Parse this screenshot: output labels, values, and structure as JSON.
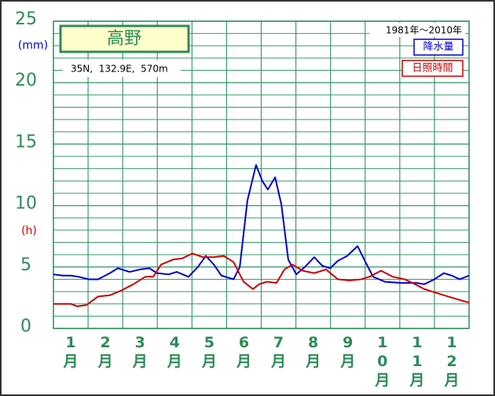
{
  "chart_data": {
    "type": "line",
    "title": "高野",
    "subtitle": "35N,  132.9E,  570m",
    "period": "1981年〜2010年",
    "y_label_precip": "(mm)",
    "y_label_sun": "(h)",
    "categories": [
      "1月",
      "2月",
      "3月",
      "4月",
      "5月",
      "6月",
      "7月",
      "8月",
      "9月",
      "10月",
      "11月",
      "12月"
    ],
    "xlim": [
      0,
      12
    ],
    "ylim": [
      0,
      25
    ],
    "yticks": [
      0,
      5,
      10,
      15,
      20,
      25
    ],
    "grid": true,
    "series": [
      {
        "name": "降水量",
        "color": "#0000cc",
        "x": [
          0,
          0.27,
          0.5,
          0.73,
          1.02,
          1.29,
          1.63,
          1.86,
          2.2,
          2.5,
          2.77,
          2.99,
          3.33,
          3.56,
          3.9,
          4.17,
          4.4,
          4.63,
          4.85,
          5.2,
          5.38,
          5.6,
          5.85,
          6.03,
          6.19,
          6.4,
          6.58,
          6.78,
          7.01,
          7.26,
          7.53,
          7.76,
          7.99,
          8.21,
          8.48,
          8.78,
          9.01,
          9.23,
          9.57,
          10.03,
          10.48,
          10.71,
          11.0,
          11.27,
          11.5,
          11.73,
          12
        ],
        "values": [
          4.4,
          4.3,
          4.3,
          4.2,
          4.0,
          4.0,
          4.5,
          4.9,
          4.6,
          4.8,
          4.9,
          4.5,
          4.4,
          4.6,
          4.2,
          5.0,
          5.9,
          5.2,
          4.3,
          4.0,
          5.0,
          10.4,
          13.3,
          12.0,
          11.3,
          12.3,
          10.1,
          5.6,
          4.4,
          5.0,
          5.8,
          5.1,
          4.9,
          5.5,
          5.9,
          6.7,
          5.4,
          4.2,
          3.8,
          3.7,
          3.7,
          3.6,
          4.0,
          4.5,
          4.3,
          4.0,
          4.3
        ]
      },
      {
        "name": "日照時間",
        "color": "#cc0000",
        "x": [
          0,
          0.5,
          0.68,
          0.95,
          1.29,
          1.63,
          1.97,
          2.31,
          2.65,
          2.88,
          3.11,
          3.45,
          3.72,
          4.01,
          4.31,
          4.63,
          4.92,
          5.2,
          5.49,
          5.76,
          5.94,
          6.17,
          6.44,
          6.67,
          6.9,
          7.19,
          7.53,
          7.87,
          8.21,
          8.55,
          8.89,
          9.12,
          9.46,
          9.8,
          10.14,
          10.44,
          10.71,
          11.05,
          11.39,
          11.62,
          12
        ],
        "values": [
          2.0,
          2.0,
          1.8,
          1.9,
          2.6,
          2.7,
          3.1,
          3.6,
          4.2,
          4.2,
          5.2,
          5.6,
          5.7,
          6.1,
          5.8,
          5.8,
          5.9,
          5.4,
          3.8,
          3.2,
          3.6,
          3.8,
          3.7,
          4.8,
          5.2,
          4.7,
          4.5,
          4.8,
          4.0,
          3.9,
          4.0,
          4.2,
          4.7,
          4.2,
          4.0,
          3.6,
          3.2,
          2.9,
          2.6,
          2.4,
          2.1
        ]
      }
    ]
  }
}
